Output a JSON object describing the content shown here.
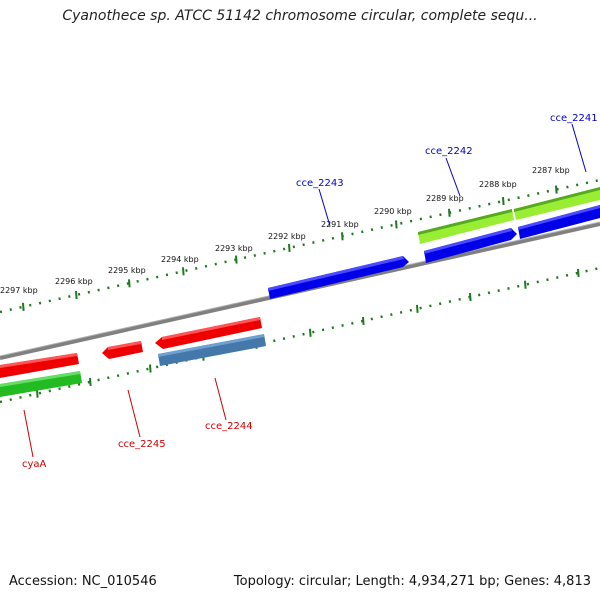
{
  "title": "Cyanothece sp. ATCC 51142 chromosome circular, complete sequ...",
  "footer": {
    "accession": "Accession: NC_010546",
    "topology": "Topology: circular; Length: 4,934,271 bp; Genes: 4,813"
  },
  "colors": {
    "forward_scale": "#1e7a1e",
    "reverse_scale": "#1e7a1e",
    "backbone": "#777777",
    "forward_gene": "#0000e8",
    "forward_label": "#0000cc",
    "reverse_gene": "#ee0000",
    "reverse_label": "#cc0000",
    "rna_like": "#99ee33",
    "misc_feature": "#4477aa",
    "green_feature": "#22bb22"
  },
  "scale_labels": [
    "2297 kbp",
    "2296 kbp",
    "2295 kbp",
    "2294 kbp",
    "2293 kbp",
    "2292 kbp",
    "2291 kbp",
    "2290 kbp",
    "2289 kbp",
    "2288 kbp",
    "2287 kbp"
  ],
  "gene_labels": [
    {
      "id": "cce_2241",
      "strand": "forward"
    },
    {
      "id": "cce_2242",
      "strand": "forward"
    },
    {
      "id": "cce_2243",
      "strand": "forward"
    },
    {
      "id": "cce_2244",
      "strand": "reverse"
    },
    {
      "id": "cce_2245",
      "strand": "reverse"
    },
    {
      "id": "cyaA",
      "strand": "reverse"
    }
  ]
}
